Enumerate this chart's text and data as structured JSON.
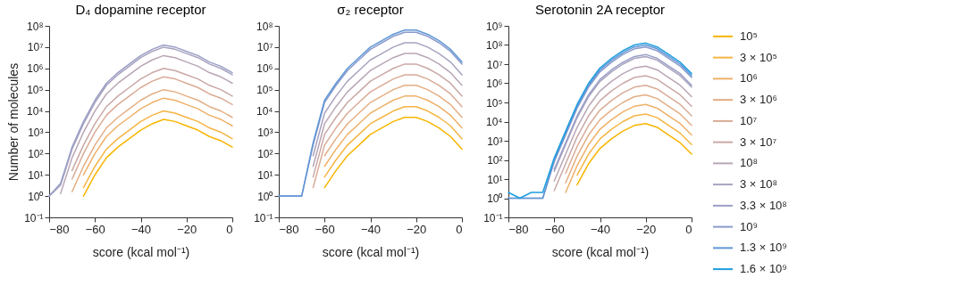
{
  "chart_data": [
    {
      "type": "line",
      "title": "D₄ dopamine receptor",
      "xlabel": "score (kcal mol⁻¹)",
      "ylabel": "Number of molecules",
      "xlim": [
        -80,
        0
      ],
      "xticks": [
        -80,
        -60,
        -40,
        -20,
        0
      ],
      "ylim": [
        0.1,
        100000000
      ],
      "yticks": [
        {
          "value": 0.1,
          "label": "10⁻¹"
        },
        {
          "value": 1,
          "label": "10⁰"
        },
        {
          "value": 10,
          "label": "10¹"
        },
        {
          "value": 100,
          "label": "10²"
        },
        {
          "value": 1000,
          "label": "10³"
        },
        {
          "value": 10000,
          "label": "10⁴"
        },
        {
          "value": 100000,
          "label": "10⁵"
        },
        {
          "value": 1000000,
          "label": "10⁶"
        },
        {
          "value": 10000000,
          "label": "10⁷"
        },
        {
          "value": 100000000,
          "label": "10⁸"
        }
      ],
      "log": "y",
      "grid": false,
      "legend": "right",
      "x": [
        -80,
        -75,
        -70,
        -65,
        -60,
        -55,
        -50,
        -45,
        -40,
        -35,
        -30,
        -25,
        -20,
        -15,
        -10,
        -5,
        0
      ],
      "series": [
        {
          "color": "#f7b500",
          "values": [
            null,
            null,
            null,
            1,
            10,
            63,
            200,
            500,
            1260,
            2500,
            4000,
            3200,
            2000,
            1260,
            630,
            400,
            200
          ]
        },
        {
          "color": "#f4b545",
          "values": [
            null,
            null,
            null,
            2.5,
            25,
            160,
            500,
            1260,
            3200,
            6300,
            10000,
            7900,
            5000,
            3200,
            1600,
            1000,
            500
          ]
        },
        {
          "color": "#eeb068",
          "values": [
            null,
            null,
            null,
            10,
            100,
            630,
            2000,
            5000,
            12600,
            25000,
            40000,
            32000,
            20000,
            12600,
            6300,
            4000,
            2000
          ]
        },
        {
          "color": "#e4ae84",
          "values": [
            null,
            null,
            1.6,
            25,
            250,
            1600,
            5000,
            12600,
            32000,
            63000,
            100000,
            79000,
            50000,
            32000,
            16000,
            10000,
            5000
          ]
        },
        {
          "color": "#d9ab96",
          "values": [
            null,
            null,
            6.3,
            100,
            1000,
            6300,
            20000,
            50000,
            126000,
            250000,
            400000,
            320000,
            200000,
            126000,
            63000,
            40000,
            20000
          ]
        },
        {
          "color": "#c9a8a6",
          "values": [
            null,
            null,
            16,
            250,
            2500,
            16000,
            50000,
            126000,
            320000,
            630000,
            1000000,
            790000,
            500000,
            320000,
            160000,
            100000,
            50000
          ]
        },
        {
          "color": "#b8a6b4",
          "values": [
            null,
            1.3,
            63,
            1000,
            10000,
            63000,
            200000,
            500000,
            1260000,
            2500000,
            4000000,
            3200000,
            2000000,
            1260000,
            630000,
            400000,
            200000
          ]
        },
        {
          "color": "#a8a2bf",
          "values": [
            1,
            3.2,
            160,
            2500,
            25000,
            160000,
            500000,
            1260000,
            3200000,
            6300000,
            10000000,
            7900000,
            5000000,
            3200000,
            1600000,
            1000000,
            500000
          ]
        },
        {
          "color": "#9a9fc6",
          "values": [
            1,
            4,
            200,
            3200,
            32000,
            200000,
            630000,
            1600000,
            4000000,
            7900000,
            12600000,
            10000000,
            6300000,
            4000000,
            2000000,
            1260000,
            630000
          ]
        }
      ]
    },
    {
      "type": "line",
      "title": "σ₂ receptor",
      "xlabel": "score (kcal mol⁻¹)",
      "xlim": [
        -80,
        0
      ],
      "xticks": [
        -80,
        -60,
        -40,
        -20,
        0
      ],
      "ylim": [
        0.1,
        100000000
      ],
      "yticks": [
        {
          "value": 0.1,
          "label": "10⁻¹"
        },
        {
          "value": 1,
          "label": "10⁰"
        },
        {
          "value": 10,
          "label": "10¹"
        },
        {
          "value": 100,
          "label": "10²"
        },
        {
          "value": 1000,
          "label": "10³"
        },
        {
          "value": 10000,
          "label": "10⁴"
        },
        {
          "value": 100000,
          "label": "10⁵"
        },
        {
          "value": 1000000,
          "label": "10⁶"
        },
        {
          "value": 10000000,
          "label": "10⁷"
        },
        {
          "value": 100000000,
          "label": "10⁸"
        }
      ],
      "log": "y",
      "grid": false,
      "legend": "right",
      "x": [
        -80,
        -75,
        -70,
        -65,
        -60,
        -55,
        -50,
        -45,
        -40,
        -35,
        -30,
        -25,
        -20,
        -15,
        -10,
        -5,
        0
      ],
      "series": [
        {
          "color": "#f7b500",
          "values": [
            null,
            null,
            null,
            null,
            2.5,
            16,
            79,
            250,
            790,
            1600,
            3200,
            5000,
            5000,
            3200,
            1600,
            630,
            160
          ]
        },
        {
          "color": "#f4b545",
          "values": [
            null,
            null,
            null,
            null,
            7.9,
            50,
            250,
            790,
            2500,
            5000,
            10000,
            16000,
            16000,
            10000,
            5000,
            2000,
            500
          ]
        },
        {
          "color": "#eeb068",
          "values": [
            null,
            null,
            null,
            null,
            25,
            160,
            790,
            2500,
            7900,
            16000,
            32000,
            50000,
            50000,
            32000,
            16000,
            6300,
            1600
          ]
        },
        {
          "color": "#e4ae84",
          "values": [
            null,
            null,
            null,
            null,
            79,
            500,
            2500,
            7900,
            25000,
            50000,
            100000,
            160000,
            160000,
            100000,
            50000,
            20000,
            5000
          ]
        },
        {
          "color": "#d9ab96",
          "values": [
            null,
            null,
            null,
            2.5,
            250,
            1600,
            7900,
            25000,
            79000,
            160000,
            320000,
            500000,
            500000,
            320000,
            160000,
            63000,
            16000
          ]
        },
        {
          "color": "#c9a8a6",
          "values": [
            null,
            null,
            null,
            7.9,
            790,
            5000,
            25000,
            79000,
            250000,
            500000,
            1000000,
            1600000,
            1600000,
            1000000,
            500000,
            200000,
            50000
          ]
        },
        {
          "color": "#b8a6b4",
          "values": [
            null,
            null,
            null,
            25,
            2500,
            16000,
            79000,
            250000,
            790000,
            1600000,
            3200000,
            5000000,
            5000000,
            3200000,
            1600000,
            630000,
            160000
          ]
        },
        {
          "color": "#a8a2bf",
          "values": [
            null,
            null,
            null,
            79,
            7900,
            50000,
            250000,
            790000,
            2500000,
            5000000,
            10000000,
            16000000,
            16000000,
            10000000,
            5000000,
            2000000,
            500000
          ]
        },
        {
          "color": "#8a9bcd",
          "values": [
            1,
            1,
            1,
            250,
            25000,
            160000,
            790000,
            2500000,
            7900000,
            16000000,
            32000000,
            50000000,
            50000000,
            32000000,
            16000000,
            6300000,
            1600000
          ]
        },
        {
          "color": "#5f97d6",
          "values": [
            1,
            1,
            1,
            320,
            32000,
            200000,
            1000000,
            3200000,
            10000000,
            20000000,
            40000000,
            63000000,
            63000000,
            40000000,
            20000000,
            7900000,
            2000000
          ]
        }
      ]
    },
    {
      "type": "line",
      "title": "Serotonin 2A receptor",
      "xlabel": "score (kcal mol⁻¹)",
      "xlim": [
        -80,
        0
      ],
      "xticks": [
        -80,
        -60,
        -40,
        -20,
        0
      ],
      "ylim": [
        0.1,
        1000000000
      ],
      "yticks": [
        {
          "value": 0.1,
          "label": "10⁻¹"
        },
        {
          "value": 1,
          "label": "10⁰"
        },
        {
          "value": 10,
          "label": "10¹"
        },
        {
          "value": 100,
          "label": "10²"
        },
        {
          "value": 1000,
          "label": "10³"
        },
        {
          "value": 10000,
          "label": "10⁴"
        },
        {
          "value": 100000,
          "label": "10⁵"
        },
        {
          "value": 1000000,
          "label": "10⁶"
        },
        {
          "value": 10000000,
          "label": "10⁷"
        },
        {
          "value": 100000000,
          "label": "10⁸"
        },
        {
          "value": 1000000000,
          "label": "10⁹"
        }
      ],
      "log": "y",
      "grid": false,
      "legend": "right",
      "x": [
        -80,
        -75,
        -70,
        -65,
        -60,
        -55,
        -50,
        -45,
        -40,
        -35,
        -30,
        -25,
        -20,
        -15,
        -10,
        -5,
        0
      ],
      "series": [
        {
          "name": "10⁵",
          "color": "#f7b500",
          "values": [
            null,
            null,
            null,
            null,
            null,
            null,
            5,
            63,
            400,
            1260,
            3200,
            6300,
            7900,
            5000,
            2000,
            790,
            200
          ]
        },
        {
          "name": "3 × 10⁵",
          "color": "#f4b545",
          "values": [
            null,
            null,
            null,
            null,
            null,
            null,
            16,
            200,
            1260,
            4000,
            10000,
            20000,
            25000,
            16000,
            6300,
            2500,
            630
          ]
        },
        {
          "name": "10⁶",
          "color": "#eeb068",
          "values": [
            null,
            null,
            null,
            null,
            null,
            2,
            50,
            630,
            4000,
            12600,
            32000,
            63000,
            79000,
            50000,
            20000,
            7900,
            2000
          ]
        },
        {
          "name": "3 × 10⁶",
          "color": "#e4ae84",
          "values": [
            null,
            null,
            null,
            null,
            null,
            6.3,
            160,
            2000,
            12600,
            40000,
            100000,
            200000,
            250000,
            160000,
            63000,
            25000,
            6300
          ]
        },
        {
          "name": "10⁷",
          "color": "#d9ab96",
          "values": [
            null,
            null,
            null,
            null,
            null,
            20,
            500,
            6300,
            40000,
            126000,
            320000,
            630000,
            790000,
            500000,
            200000,
            79000,
            20000
          ]
        },
        {
          "name": "3 × 10⁷",
          "color": "#c9a8a6",
          "values": [
            null,
            null,
            null,
            null,
            2.5,
            63,
            1600,
            20000,
            126000,
            400000,
            1000000,
            2000000,
            2500000,
            1600000,
            630000,
            250000,
            63000
          ]
        },
        {
          "name": "10⁸",
          "color": "#b8a6b4",
          "values": [
            null,
            null,
            null,
            null,
            7.9,
            200,
            5000,
            63000,
            400000,
            1260000,
            3200000,
            6300000,
            7900000,
            5000000,
            2000000,
            790000,
            200000
          ]
        },
        {
          "name": "3 × 10⁸",
          "color": "#a8a2bf",
          "values": [
            null,
            null,
            null,
            null,
            25,
            630,
            16000,
            200000,
            1260000,
            4000000,
            10000000,
            20000000,
            25000000,
            16000000,
            6300000,
            2500000,
            630000
          ]
        },
        {
          "name": "3.3 × 10⁸",
          "color": "#9a9fc6",
          "values": [
            null,
            null,
            null,
            null,
            32,
            790,
            20000,
            250000,
            1600000,
            5000000,
            12600000,
            25000000,
            32000000,
            20000000,
            7900000,
            3200000,
            790000
          ]
        },
        {
          "name": "10⁹",
          "color": "#8a9bcd",
          "values": [
            1,
            1,
            1,
            1,
            79,
            2000,
            50000,
            630000,
            4000000,
            12600000,
            32000000,
            63000000,
            79000000,
            50000000,
            20000000,
            7900000,
            2000000
          ]
        },
        {
          "name": "1.3 × 10⁹",
          "color": "#5f97d6",
          "values": [
            1,
            1,
            1,
            1,
            100,
            2500,
            63000,
            790000,
            5000000,
            16000000,
            40000000,
            79000000,
            100000000,
            63000000,
            25000000,
            10000000,
            2500000
          ]
        },
        {
          "name": "1.6 × 10⁹",
          "color": "#1e9de0",
          "values": [
            2,
            1,
            2,
            2,
            126,
            3200,
            79000,
            1000000,
            6300000,
            20000000,
            50000000,
            100000000,
            126000000,
            79000000,
            32000000,
            12600000,
            3200000
          ]
        }
      ]
    }
  ]
}
